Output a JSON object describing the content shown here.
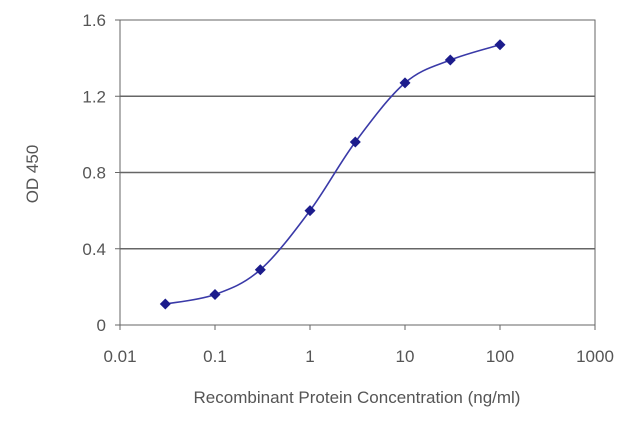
{
  "chart_data": {
    "type": "line",
    "title": "",
    "xlabel": "Recombinant Protein Concentration (ng/ml)",
    "ylabel": "OD 450",
    "x_scale": "log",
    "xlim": [
      0.01,
      1000
    ],
    "ylim": [
      0,
      1.6
    ],
    "x_ticks": [
      "0.01",
      "0.1",
      "1",
      "10",
      "100",
      "1000"
    ],
    "y_ticks": [
      "0",
      "0.4",
      "0.8",
      "1.2",
      "1.6"
    ],
    "grid": "horizontal",
    "legend": "none",
    "series": [
      {
        "x": [
          0.03,
          0.1,
          0.3,
          1,
          3,
          10,
          30,
          100
        ],
        "y": [
          0.11,
          0.16,
          0.29,
          0.6,
          0.96,
          1.27,
          1.39,
          1.47
        ]
      }
    ],
    "colors": {
      "line": "#3a3aa8",
      "marker": "#1c1c8c",
      "grid": "#666666",
      "frame": "#666666",
      "text": "#555555"
    }
  }
}
